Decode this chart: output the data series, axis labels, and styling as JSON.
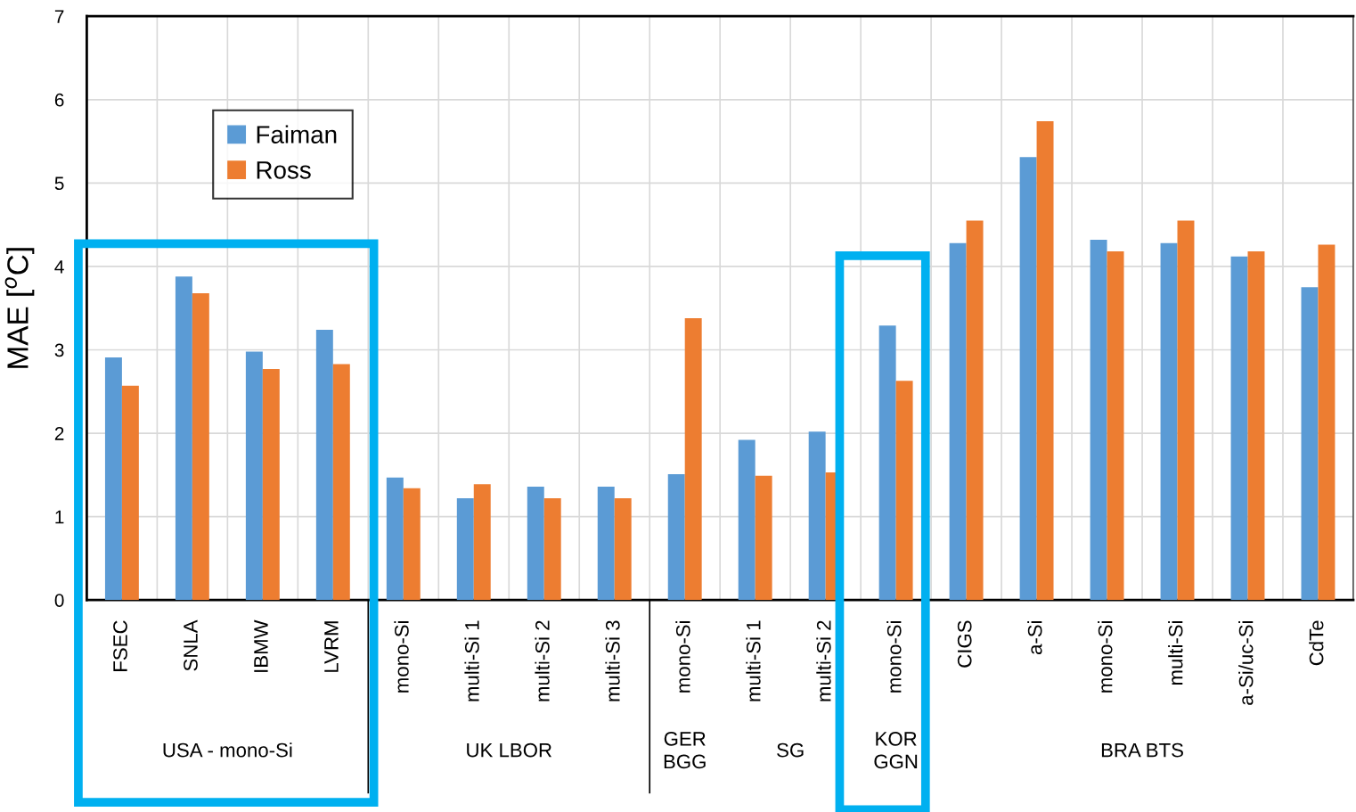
{
  "chart_data": {
    "type": "bar",
    "categories": [
      "FSEC",
      "SNLA",
      "IBMW",
      "LVRM",
      "mono-Si",
      "multi-Si 1",
      "multi-Si 2",
      "multi-Si 3",
      "mono-Si",
      "multi-Si 1",
      "multi-Si 2",
      "mono-Si",
      "CIGS",
      "a-Si",
      "mono-Si",
      "multi-Si",
      "a-Si/uc-Si",
      "CdTe"
    ],
    "series": [
      {
        "name": "Faiman",
        "color": "#5b9bd5",
        "values": [
          2.91,
          3.88,
          2.98,
          3.24,
          1.47,
          1.22,
          1.36,
          1.36,
          1.51,
          1.92,
          2.02,
          3.29,
          4.28,
          5.31,
          4.32,
          4.28,
          4.12,
          3.75
        ]
      },
      {
        "name": "Ross",
        "color": "#ed7d31",
        "values": [
          2.57,
          3.68,
          2.77,
          2.83,
          1.34,
          1.39,
          1.22,
          1.22,
          3.38,
          1.49,
          1.53,
          2.63,
          4.55,
          5.74,
          4.18,
          4.55,
          4.18,
          4.26
        ]
      }
    ],
    "ylabel": "MAE [$^{o}$C]",
    "ylim": [
      0,
      7
    ],
    "yticks": [
      0,
      1,
      2,
      3,
      4,
      5,
      6,
      7
    ],
    "annotations": [
      "USA - mono-Si",
      "UK LBOR",
      "GER\nBGG",
      "SG",
      "KOR\nGGN",
      "BRA BTS"
    ],
    "grid": true,
    "legend": "top left"
  }
}
